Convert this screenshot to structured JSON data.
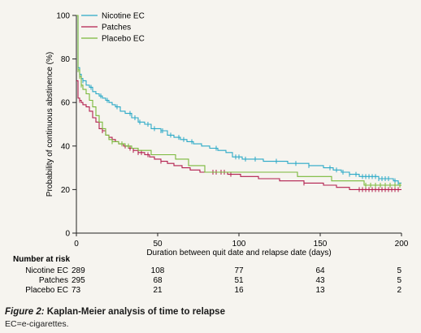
{
  "chart_data": {
    "type": "line",
    "subtype": "kaplan-meier",
    "ylabel": "Probability of continuous abstinence (%)",
    "xlabel": "Duration between quit date and relapse date (days)",
    "xlim": [
      0,
      200
    ],
    "ylim": [
      0,
      100
    ],
    "xticks": [
      0,
      50,
      100,
      150,
      200
    ],
    "yticks": [
      0,
      20,
      40,
      60,
      80,
      100
    ],
    "grid": false,
    "legend_position": "top-left",
    "series": [
      {
        "name": "Nicotine EC",
        "color": "#2aa9c7",
        "steps": [
          [
            0,
            100
          ],
          [
            1,
            76
          ],
          [
            2,
            73
          ],
          [
            3,
            71
          ],
          [
            4,
            70
          ],
          [
            6,
            68
          ],
          [
            8,
            67
          ],
          [
            10,
            65
          ],
          [
            12,
            64
          ],
          [
            14,
            63
          ],
          [
            16,
            62
          ],
          [
            18,
            61
          ],
          [
            20,
            60
          ],
          [
            22,
            59
          ],
          [
            24,
            58
          ],
          [
            27,
            56
          ],
          [
            30,
            55
          ],
          [
            34,
            53
          ],
          [
            38,
            51
          ],
          [
            42,
            50
          ],
          [
            46,
            48
          ],
          [
            52,
            47
          ],
          [
            56,
            45
          ],
          [
            60,
            44
          ],
          [
            64,
            43
          ],
          [
            68,
            42
          ],
          [
            72,
            41
          ],
          [
            77,
            40
          ],
          [
            82,
            39
          ],
          [
            87,
            38
          ],
          [
            92,
            37
          ],
          [
            96,
            35
          ],
          [
            102,
            34
          ],
          [
            115,
            33
          ],
          [
            130,
            32
          ],
          [
            143,
            31
          ],
          [
            152,
            30
          ],
          [
            158,
            29
          ],
          [
            163,
            28
          ],
          [
            168,
            27
          ],
          [
            174,
            26
          ],
          [
            186,
            25
          ],
          [
            195,
            24
          ],
          [
            198,
            23
          ],
          [
            200,
            23
          ]
        ],
        "censor_x": [
          4,
          9,
          15,
          19,
          25,
          33,
          36,
          39,
          44,
          48,
          52,
          53,
          58,
          63,
          66,
          71,
          86,
          98,
          100,
          104,
          110,
          123,
          135,
          143,
          156,
          160,
          164,
          168,
          172,
          176,
          178,
          180,
          182,
          184,
          186,
          188,
          190,
          192,
          196,
          198
        ]
      },
      {
        "name": "Patches",
        "color": "#b21e4e",
        "steps": [
          [
            0,
            70
          ],
          [
            1,
            62
          ],
          [
            2,
            61
          ],
          [
            3,
            60
          ],
          [
            4,
            59
          ],
          [
            6,
            58
          ],
          [
            8,
            56
          ],
          [
            10,
            53
          ],
          [
            12,
            51
          ],
          [
            14,
            48
          ],
          [
            16,
            47
          ],
          [
            18,
            45
          ],
          [
            20,
            44
          ],
          [
            22,
            43
          ],
          [
            24,
            42
          ],
          [
            26,
            41
          ],
          [
            29,
            40
          ],
          [
            32,
            39
          ],
          [
            35,
            38
          ],
          [
            38,
            37
          ],
          [
            42,
            36
          ],
          [
            45,
            35
          ],
          [
            48,
            34
          ],
          [
            52,
            33
          ],
          [
            56,
            32
          ],
          [
            60,
            31
          ],
          [
            65,
            30
          ],
          [
            70,
            29
          ],
          [
            76,
            28
          ],
          [
            85,
            28
          ],
          [
            93,
            27
          ],
          [
            101,
            26
          ],
          [
            112,
            25
          ],
          [
            125,
            24
          ],
          [
            140,
            23
          ],
          [
            152,
            22
          ],
          [
            160,
            21
          ],
          [
            168,
            20
          ],
          [
            200,
            20
          ]
        ],
        "censor_x": [
          2,
          16,
          28,
          30,
          33,
          35,
          38,
          40,
          44,
          52,
          84,
          86,
          89,
          91,
          95,
          140,
          174,
          176,
          178,
          180,
          182,
          184,
          186,
          188,
          190,
          192,
          194,
          196,
          198
        ]
      },
      {
        "name": "Placebo EC",
        "color": "#79b83a",
        "steps": [
          [
            0,
            100
          ],
          [
            1,
            75
          ],
          [
            2,
            72
          ],
          [
            3,
            68
          ],
          [
            4,
            66
          ],
          [
            6,
            64
          ],
          [
            8,
            61
          ],
          [
            10,
            58
          ],
          [
            12,
            54
          ],
          [
            14,
            51
          ],
          [
            16,
            48
          ],
          [
            18,
            45
          ],
          [
            20,
            43
          ],
          [
            22,
            42
          ],
          [
            26,
            41
          ],
          [
            30,
            40
          ],
          [
            34,
            39
          ],
          [
            38,
            38
          ],
          [
            45,
            38
          ],
          [
            46,
            36
          ],
          [
            60,
            36
          ],
          [
            61,
            34
          ],
          [
            68,
            34
          ],
          [
            69,
            31
          ],
          [
            78,
            31
          ],
          [
            79,
            28
          ],
          [
            135,
            28
          ],
          [
            136,
            26
          ],
          [
            156,
            26
          ],
          [
            157,
            24
          ],
          [
            176,
            24
          ],
          [
            177,
            22
          ],
          [
            200,
            22
          ]
        ],
        "censor_x": [
          1,
          2,
          3,
          22,
          28,
          32,
          178,
          181,
          184,
          187,
          190,
          193,
          196,
          199
        ]
      }
    ]
  },
  "risk_table": {
    "title": "Number at risk",
    "rows": [
      {
        "label": "Nicotine EC",
        "values": [
          "289",
          "108",
          "77",
          "64",
          "5"
        ]
      },
      {
        "label": "Patches",
        "values": [
          "295",
          "68",
          "51",
          "43",
          "5"
        ]
      },
      {
        "label": "Placebo EC",
        "values": [
          "73",
          "21",
          "16",
          "13",
          "2"
        ]
      }
    ]
  },
  "caption": {
    "label": "Figure 2:",
    "title": "Kaplan-Meier analysis of time to relapse",
    "note": "EC=e-cigarettes."
  }
}
